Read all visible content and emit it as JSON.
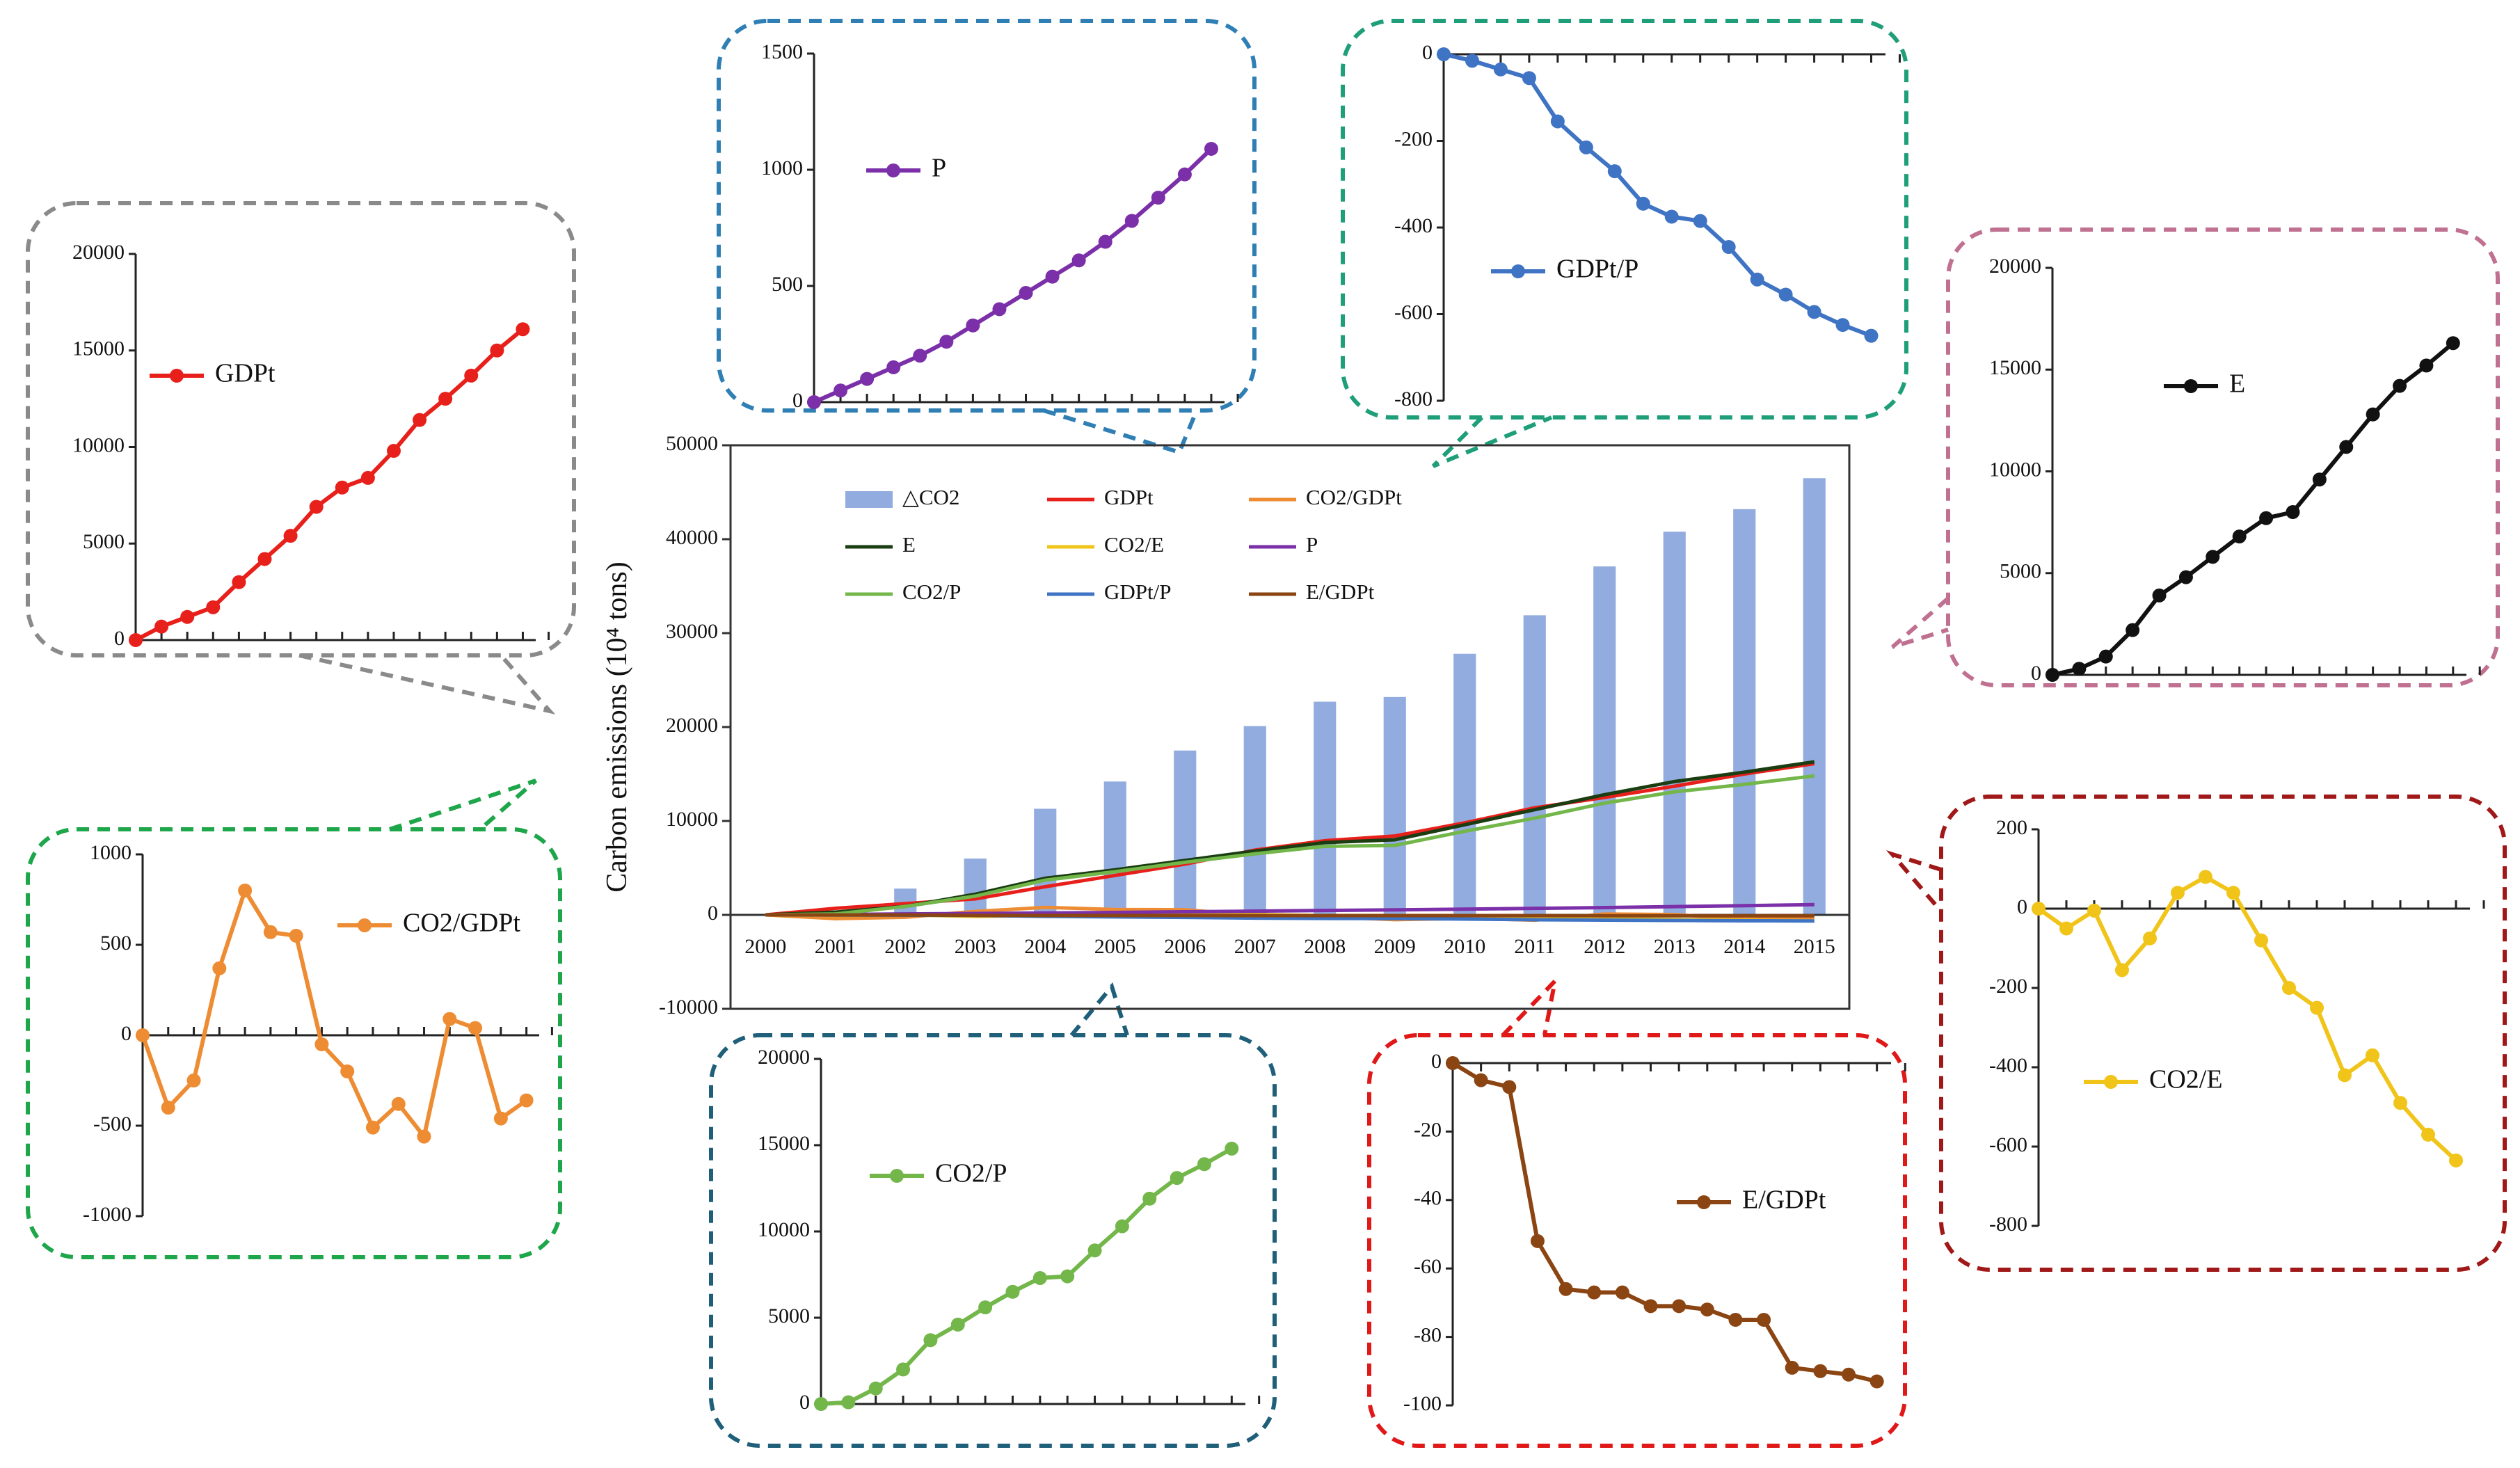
{
  "chart_data": [
    {
      "id": "main",
      "type": "bar+line",
      "title": "",
      "ylabel": "Carbon emissions (10⁴ tons)",
      "xlabel": "",
      "ylim": [
        -10000,
        50000
      ],
      "yticks": [
        -10000,
        0,
        10000,
        20000,
        30000,
        40000,
        50000
      ],
      "categories": [
        "2000",
        "2001",
        "2002",
        "2003",
        "2004",
        "2005",
        "2006",
        "2007",
        "2008",
        "2009",
        "2010",
        "2011",
        "2012",
        "2013",
        "2014",
        "2015"
      ],
      "bar_series": {
        "name": "△CO2",
        "color": "#92acdf",
        "values": [
          0,
          0,
          2800,
          6000,
          11300,
          14200,
          17500,
          20100,
          22700,
          23200,
          27800,
          31900,
          37100,
          40800,
          43200,
          46500
        ]
      },
      "series": [
        {
          "name": "GDPt",
          "color": "#e8201b",
          "values": [
            0,
            700,
            1200,
            1700,
            3000,
            4200,
            5400,
            6900,
            7900,
            8400,
            9800,
            11400,
            12500,
            13700,
            15000,
            16100
          ]
        },
        {
          "name": "CO2/GDPt",
          "color": "#ee8c33",
          "values": [
            0,
            -400,
            -250,
            370,
            800,
            570,
            550,
            -50,
            -200,
            -510,
            -380,
            -560,
            90,
            40,
            -460,
            -360
          ]
        },
        {
          "name": "E",
          "color": "#1a3d12",
          "values": [
            0,
            300,
            900,
            2200,
            3900,
            4800,
            5800,
            6800,
            7700,
            8000,
            9600,
            11200,
            12800,
            14200,
            15200,
            16300
          ]
        },
        {
          "name": "CO2/E",
          "color": "#f0c419",
          "values": [
            0,
            -50,
            -5,
            -155,
            -75,
            40,
            80,
            40,
            -80,
            -200,
            -250,
            -420,
            -370,
            -490,
            -570,
            -635
          ]
        },
        {
          "name": "P",
          "color": "#7b2fa8",
          "values": [
            0,
            50,
            100,
            150,
            200,
            260,
            330,
            400,
            470,
            540,
            610,
            690,
            780,
            880,
            980,
            1090
          ]
        },
        {
          "name": "CO2/P",
          "color": "#73b64a",
          "values": [
            0,
            100,
            900,
            2000,
            3700,
            4600,
            5600,
            6500,
            7300,
            7400,
            8900,
            10300,
            11900,
            13100,
            13900,
            14800
          ]
        },
        {
          "name": "GDPt/P",
          "color": "#3f73c4",
          "values": [
            0,
            -15,
            -35,
            -55,
            -155,
            -215,
            -270,
            -345,
            -375,
            -385,
            -445,
            -520,
            -555,
            -595,
            -625,
            -650
          ]
        },
        {
          "name": "E/GDPt",
          "color": "#8b4513",
          "values": [
            0,
            -5,
            -7,
            -52,
            -66,
            -67,
            -67,
            -71,
            -71,
            -72,
            -75,
            -75,
            -89,
            -90,
            -91,
            -93
          ]
        }
      ]
    },
    {
      "id": "inset-gdpt",
      "type": "line",
      "legend": "GDPt",
      "color": "#e8201b",
      "ylim": [
        0,
        20000
      ],
      "yticks": [
        0,
        5000,
        10000,
        15000,
        20000
      ],
      "values": [
        0,
        700,
        1200,
        1700,
        3000,
        4200,
        5400,
        6900,
        7900,
        8400,
        9800,
        11400,
        12500,
        13700,
        15000,
        16100
      ]
    },
    {
      "id": "inset-co2-gdpt",
      "type": "line",
      "legend": "CO2/GDPt",
      "color": "#ee8c33",
      "ylim": [
        -1000,
        1000
      ],
      "yticks": [
        -1000,
        -500,
        0,
        500,
        1000
      ],
      "values": [
        0,
        -400,
        -250,
        370,
        800,
        570,
        550,
        -50,
        -200,
        -510,
        -380,
        -560,
        90,
        40,
        -460,
        -360
      ]
    },
    {
      "id": "inset-p",
      "type": "line",
      "legend": "P",
      "color": "#7b2fa8",
      "ylim": [
        0,
        1500
      ],
      "yticks": [
        0,
        500,
        1000,
        1500
      ],
      "values": [
        0,
        50,
        100,
        150,
        200,
        260,
        330,
        400,
        470,
        540,
        610,
        690,
        780,
        880,
        980,
        1090
      ]
    },
    {
      "id": "inset-gdpt-p",
      "type": "line",
      "legend": "GDPt/P",
      "color": "#3f73c4",
      "ylim": [
        -800,
        0
      ],
      "yticks": [
        -800,
        -600,
        -400,
        -200,
        0
      ],
      "values": [
        0,
        -15,
        -35,
        -55,
        -155,
        -215,
        -270,
        -345,
        -375,
        -385,
        -445,
        -520,
        -555,
        -595,
        -625,
        -650
      ]
    },
    {
      "id": "inset-e",
      "type": "line",
      "legend": "E",
      "color": "#111111",
      "ylim": [
        0,
        20000
      ],
      "yticks": [
        0,
        5000,
        10000,
        15000,
        20000
      ],
      "values": [
        0,
        300,
        900,
        2200,
        3900,
        4800,
        5800,
        6800,
        7700,
        8000,
        9600,
        11200,
        12800,
        14200,
        15200,
        16300
      ]
    },
    {
      "id": "inset-co2-e",
      "type": "line",
      "legend": "CO2/E",
      "color": "#f0c419",
      "ylim": [
        -800,
        200
      ],
      "yticks": [
        -800,
        -600,
        -400,
        -200,
        0,
        200
      ],
      "values": [
        0,
        -50,
        -5,
        -155,
        -75,
        40,
        80,
        40,
        -80,
        -200,
        -250,
        -420,
        -370,
        -490,
        -570,
        -635
      ]
    },
    {
      "id": "inset-co2-p",
      "type": "line",
      "legend": "CO2/P",
      "color": "#73b64a",
      "ylim": [
        0,
        20000
      ],
      "yticks": [
        0,
        5000,
        10000,
        15000,
        20000
      ],
      "values": [
        0,
        100,
        900,
        2000,
        3700,
        4600,
        5600,
        6500,
        7300,
        7400,
        8900,
        10300,
        11900,
        13100,
        13900,
        14800
      ]
    },
    {
      "id": "inset-e-gdpt",
      "type": "line",
      "legend": "E/GDPt",
      "color": "#8b4513",
      "ylim": [
        -100,
        0
      ],
      "yticks": [
        -100,
        -80,
        -60,
        -40,
        -20,
        0
      ],
      "values": [
        0,
        -5,
        -7,
        -52,
        -66,
        -67,
        -67,
        -71,
        -71,
        -72,
        -75,
        -75,
        -89,
        -90,
        -91,
        -93
      ]
    }
  ],
  "frame_colors": {
    "inset-gdpt": "#8a8a8a",
    "inset-co2-gdpt": "#1ea64a",
    "inset-p": "#2f7fb5",
    "inset-gdpt-p": "#1f9e7a",
    "inset-e": "#c07090",
    "inset-co2-e": "#a01818",
    "inset-co2-p": "#1f5f7a",
    "inset-e-gdpt": "#e01818"
  }
}
